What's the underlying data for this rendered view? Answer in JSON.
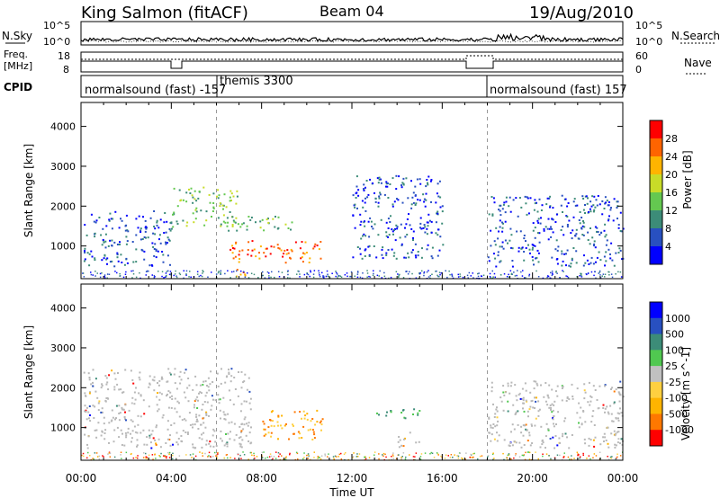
{
  "header": {
    "station": "King Salmon (fitACF)",
    "beam": "Beam 04",
    "date": "19/Aug/2010"
  },
  "nsky_panel": {
    "left_label": "N.Sky",
    "left_ticks": [
      "10^5",
      "10^0"
    ],
    "right_label": "N.Search",
    "right_ticks": [
      "10^5",
      "10^0"
    ]
  },
  "freq_panel": {
    "left_label_1": "Freq.",
    "left_label_2": "[MHz]",
    "left_ticks": [
      "18",
      "8"
    ],
    "right_label": "Nave",
    "right_ticks": [
      "60",
      "0"
    ]
  },
  "cpid": {
    "label": "CPID",
    "segments": [
      {
        "text": "normalsound (fast) -157",
        "start_hour": 0
      },
      {
        "text": "themis 3300",
        "start_hour": 6
      },
      {
        "text": "normalsound (fast) 157",
        "start_hour": 18
      }
    ]
  },
  "colors": {
    "power": [
      "#0000ff",
      "#2850c0",
      "#3c8c78",
      "#64c850",
      "#c8dc28",
      "#ffb400",
      "#ff6400",
      "#ff0000"
    ],
    "velocity": [
      "#ff0000",
      "#ff7800",
      "#ffb400",
      "#ffd040",
      "#c0c0c0",
      "#50c850",
      "#3c8c78",
      "#2850c0",
      "#0000ff"
    ],
    "gray_scatter": "#b8b8b8"
  },
  "chart_data": [
    {
      "type": "heatmap",
      "title": "Power",
      "xlabel": "Time UT",
      "ylabel": "Slant Range [km]",
      "xlim": [
        0,
        24
      ],
      "ylim": [
        180,
        4600
      ],
      "x_ticks": [
        "00:00",
        "04:00",
        "08:00",
        "12:00",
        "16:00",
        "20:00",
        "00:00"
      ],
      "y_ticks": [
        1000,
        2000,
        3000,
        4000
      ],
      "colorbar": {
        "label": "Power [dB]",
        "ticks": [
          4,
          8,
          12,
          16,
          20,
          24,
          28
        ],
        "range": [
          0,
          30
        ]
      },
      "regions": [
        {
          "t": [
            0.1,
            4.0
          ],
          "r": [
            500,
            1900
          ],
          "level": "low",
          "note": "banded scatter"
        },
        {
          "t": [
            4.0,
            6.9
          ],
          "r": [
            1500,
            2500
          ],
          "level": "mid"
        },
        {
          "t": [
            6.5,
            9.5
          ],
          "r": [
            1400,
            1800
          ],
          "level": "mid"
        },
        {
          "t": [
            6.5,
            10.7
          ],
          "r": [
            600,
            1150
          ],
          "level": "high",
          "note": "strong echo band"
        },
        {
          "t": [
            6.4,
            7.3
          ],
          "r": [
            200,
            450
          ],
          "level": "high"
        },
        {
          "t": [
            12.0,
            16.0
          ],
          "r": [
            700,
            2800
          ],
          "level": "low",
          "note": "sparse"
        },
        {
          "t": [
            18.0,
            24.0
          ],
          "r": [
            500,
            2300
          ],
          "level": "low",
          "note": "banded scatter"
        }
      ]
    },
    {
      "type": "heatmap",
      "title": "Velocity",
      "xlabel": "Time UT",
      "ylabel": "Slant Range [km]",
      "xlim": [
        0,
        24
      ],
      "ylim": [
        180,
        4600
      ],
      "x_ticks": [
        "00:00",
        "04:00",
        "08:00",
        "12:00",
        "16:00",
        "20:00",
        "00:00"
      ],
      "y_ticks": [
        1000,
        2000,
        3000,
        4000
      ],
      "colorbar": {
        "label": "Velocity [m s^-1]",
        "ticks": [
          1000,
          500,
          100,
          25,
          -25,
          -100,
          -500,
          -1000
        ]
      },
      "regions": [
        {
          "t": [
            0.1,
            7.5
          ],
          "r": [
            500,
            2500
          ],
          "level": "ground",
          "note": "gray ground scatter"
        },
        {
          "t": [
            8.0,
            10.7
          ],
          "r": [
            700,
            1500
          ],
          "level": "away",
          "note": "orange negative velocity"
        },
        {
          "t": [
            13.0,
            15.0
          ],
          "r": [
            1200,
            1500
          ],
          "level": "toward",
          "note": "green positive velocity"
        },
        {
          "t": [
            14.0,
            15.0
          ],
          "r": [
            500,
            900
          ],
          "level": "ground"
        },
        {
          "t": [
            18.0,
            24.0
          ],
          "r": [
            500,
            2200
          ],
          "level": "ground"
        }
      ]
    }
  ]
}
